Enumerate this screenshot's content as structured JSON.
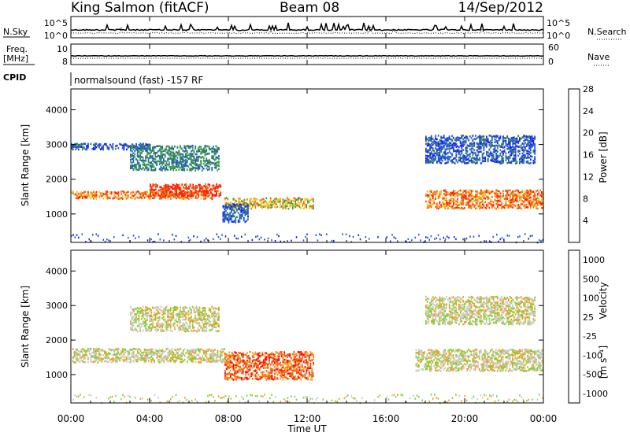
{
  "header": {
    "station": "King Salmon (fitACF)",
    "beam": "Beam 08",
    "date": "14/Sep/2012"
  },
  "panels": {
    "nsky_label": "N.Sky",
    "nsky_ticks": [
      "10^5",
      "10^0"
    ],
    "nsearch_label": "N.Search",
    "nsearch_ticks": [
      "10^5",
      "10^0"
    ],
    "freq_label_line1": "Freq.",
    "freq_label_line2": "[MHz]",
    "freq_ticks": [
      "10",
      "8"
    ],
    "nave_label": "Nave",
    "nave_ticks": [
      "60",
      "0"
    ],
    "cpid_label": "CPID",
    "cpid_text": "normalsound (fast) -157 RF"
  },
  "chart_data": [
    {
      "type": "heatmap",
      "name": "power-panel",
      "ylabel": "Slant Range [km]",
      "y_ticks": [
        1000,
        2000,
        3000,
        4000
      ],
      "ylim": [
        180,
        4600
      ],
      "xlim": [
        0,
        24
      ],
      "colorbar": {
        "label": "Power [dB]",
        "ticks": [
          "4",
          "8",
          "12",
          "16",
          "20",
          "24",
          "28"
        ],
        "colors": [
          "#1a1aff",
          "#1e5cc8",
          "#2e7d5a",
          "#3aa040",
          "#f0c020",
          "#f07010",
          "#ff2000"
        ]
      },
      "bands": [
        {
          "t0": 0.0,
          "t1": 7.2,
          "r0": 1480,
          "r1": 1680,
          "level": 5
        },
        {
          "t0": 4.0,
          "t1": 7.6,
          "r0": 1550,
          "r1": 1900,
          "level": 6
        },
        {
          "t0": 0.0,
          "t1": 4.0,
          "r0": 2900,
          "r1": 3050,
          "level": 1
        },
        {
          "t0": 3.0,
          "t1": 7.5,
          "r0": 2300,
          "r1": 3000,
          "level": 2
        },
        {
          "t0": 7.8,
          "t1": 12.3,
          "r0": 1200,
          "r1": 1500,
          "level": 4
        },
        {
          "t0": 7.7,
          "t1": 9.0,
          "r0": 800,
          "r1": 1300,
          "level": 1
        },
        {
          "t0": 18.0,
          "t1": 24.0,
          "r0": 1200,
          "r1": 1700,
          "level": 5
        },
        {
          "t0": 18.0,
          "t1": 23.6,
          "r0": 2500,
          "r1": 3300,
          "level": 1
        }
      ]
    },
    {
      "type": "heatmap",
      "name": "velocity-panel",
      "ylabel": "Slant Range [km]",
      "xlabel": "Time UT",
      "x_ticks": [
        "00:00",
        "04:00",
        "08:00",
        "12:00",
        "16:00",
        "20:00",
        "00:00"
      ],
      "y_ticks": [
        1000,
        2000,
        3000,
        4000
      ],
      "ylim": [
        180,
        4600
      ],
      "xlim": [
        0,
        24
      ],
      "colorbar": {
        "label": "Velocity",
        "ticks": [
          "1000",
          "500",
          "100",
          "25",
          "-25",
          "-100",
          "-500",
          "-1000"
        ],
        "colors": [
          "#1a1aff",
          "#2e7d5a",
          "#3aa040",
          "#80d030",
          "#c8c8c0",
          "#f0a020",
          "#f06010",
          "#ff0000"
        ]
      },
      "bands": [
        {
          "t0": 0.0,
          "t1": 7.8,
          "r0": 1400,
          "r1": 1800,
          "level": 4
        },
        {
          "t0": 7.8,
          "t1": 12.3,
          "r0": 900,
          "r1": 1700,
          "level": 6
        },
        {
          "t0": 17.5,
          "t1": 24.0,
          "r0": 1150,
          "r1": 1750,
          "level": 4
        },
        {
          "t0": 3.0,
          "t1": 7.5,
          "r0": 2300,
          "r1": 3000,
          "level": 4
        },
        {
          "t0": 18.0,
          "t1": 23.6,
          "r0": 2500,
          "r1": 3300,
          "level": 4
        }
      ]
    }
  ]
}
